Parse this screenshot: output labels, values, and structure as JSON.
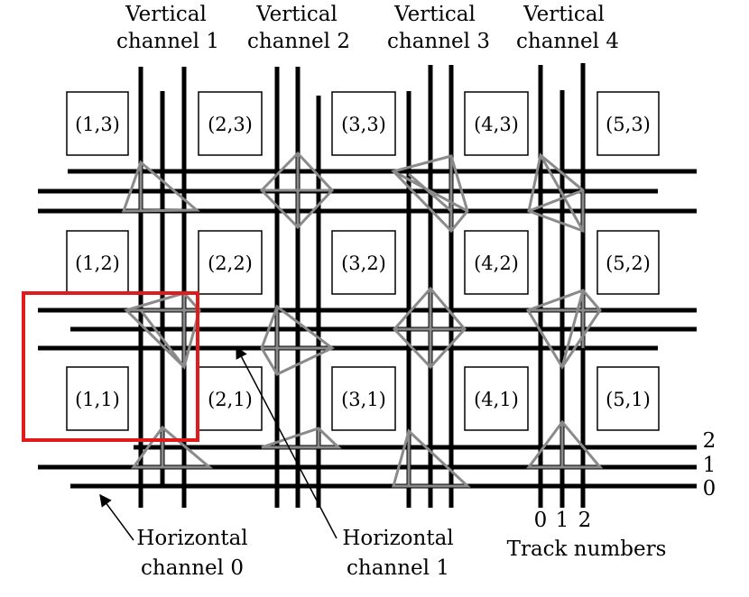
{
  "figure": {
    "vertical_channel_labels": [
      [
        "Vertical",
        "channel 1"
      ],
      [
        "Vertical",
        "channel 2"
      ],
      [
        "Vertical",
        "channel 3"
      ],
      [
        "Vertical",
        "channel 4"
      ]
    ],
    "logic_blocks": {
      "row3": [
        "(1,3)",
        "(2,3)",
        "(3,3)",
        "(4,3)",
        "(5,3)"
      ],
      "row2": [
        "(1,2)",
        "(2,2)",
        "(3,2)",
        "(4,2)",
        "(5,2)"
      ],
      "row1": [
        "(1,1)",
        "(2,1)",
        "(3,1)",
        "(4,1)",
        "(5,1)"
      ]
    },
    "horizontal_track_numbers": [
      "2",
      "1",
      "0"
    ],
    "vertical_track_numbers": [
      "0",
      "1",
      "2"
    ],
    "track_numbers_caption": "Track numbers",
    "horizontal_channel_0": [
      "Horizontal",
      "channel 0"
    ],
    "horizontal_channel_1": [
      "Horizontal",
      "channel 1"
    ],
    "colors": {
      "wire": "#000000",
      "switch_box": "#8a8a8a",
      "highlight": "#e01b1b"
    }
  }
}
